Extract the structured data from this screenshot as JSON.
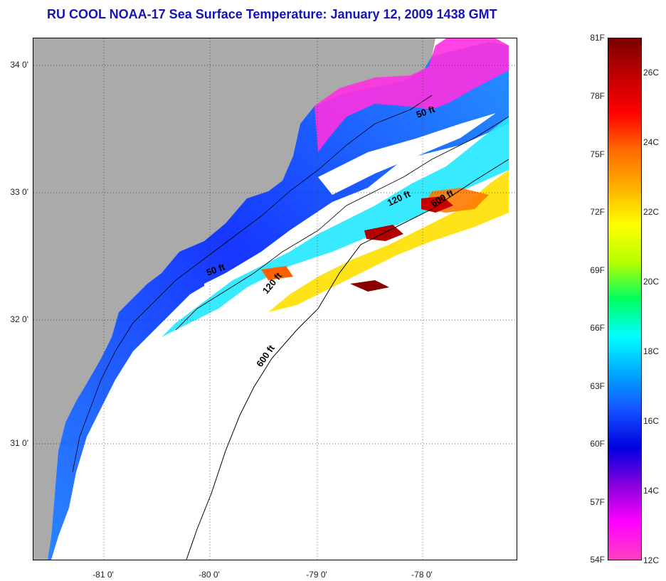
{
  "title": "RU COOL  NOAA-17  Sea Surface Temperature:  January 12, 2009 1438 GMT",
  "map": {
    "latitude_labels": [
      "34 0'",
      "33 0'",
      "32 0'",
      "31 0'"
    ],
    "longitude_labels": [
      "-81 0'",
      "-80 0'",
      "-79 0'",
      "-78 0'"
    ],
    "contour_labels": [
      "50 ft",
      "50 ft",
      "120 ft",
      "120 ft",
      "600 ft",
      "600 ft"
    ],
    "colors": {
      "land": "#aaaaaa",
      "cloud": "#ffffff",
      "coastline": "#000000"
    }
  },
  "colorbar": {
    "fahrenheit_labels": [
      "81F",
      "78F",
      "75F",
      "72F",
      "69F",
      "66F",
      "63F",
      "60F",
      "57F",
      "54F"
    ],
    "celsius_labels": [
      "26C",
      "24C",
      "22C",
      "20C",
      "18C",
      "16C",
      "14C",
      "12C"
    ],
    "gradient_colors": [
      "#7a0000",
      "#c00000",
      "#ff0000",
      "#ff6a00",
      "#ffb000",
      "#ffff00",
      "#b8ff00",
      "#00ff60",
      "#00ffff",
      "#00a8ff",
      "#1450ff",
      "#0000e0",
      "#8800dd",
      "#ff00ff",
      "#ff40c0"
    ]
  }
}
